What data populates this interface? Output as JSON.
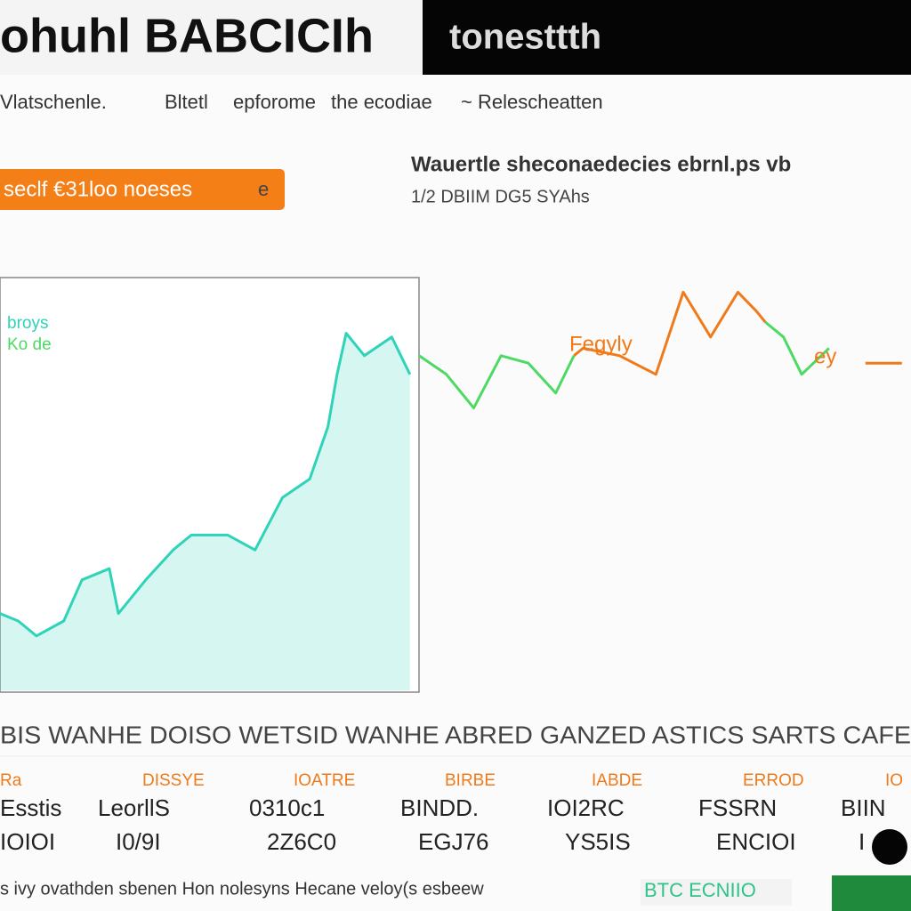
{
  "header": {
    "title": "ohuhl BABCICIh",
    "subtitle": "tonesttth"
  },
  "nav": [
    "Vlatschenle.",
    "Bltetl",
    "epforome",
    "the ecodiae",
    "~ Relescheatten"
  ],
  "button": {
    "label": "seclf €31loo noeses",
    "icon": "e"
  },
  "info": {
    "title": "Wauertle sheconaedecies ebrnl.ps vb",
    "subtitle": "1/2 DBIIM DG5 SYAhs"
  },
  "chart_data": {
    "type": "line",
    "xlim": [
      0,
      100
    ],
    "ylim": [
      0,
      100
    ],
    "series": [
      {
        "name": "broys",
        "color": "#2ed3b8",
        "area": true,
        "x": [
          0,
          2,
          4,
          7,
          9,
          12,
          13,
          16,
          19,
          21,
          25,
          28,
          31,
          34,
          36,
          37,
          38,
          40,
          43,
          45
        ],
        "values": [
          12,
          10,
          6,
          10,
          21,
          24,
          12,
          21,
          29,
          33,
          33,
          29,
          43,
          48,
          62,
          76,
          87,
          81,
          86,
          76
        ]
      },
      {
        "name": "Ko de",
        "color": "#4cd964",
        "x": [
          46,
          49,
          52,
          55,
          58,
          61,
          63,
          74,
          84,
          86,
          88,
          91
        ],
        "values": [
          81,
          76,
          67,
          81,
          79,
          71,
          81,
          null,
          90,
          86,
          76,
          83
        ]
      },
      {
        "color": "#f07a1a",
        "x": [
          63,
          64,
          68,
          72,
          75,
          78,
          81,
          83,
          84,
          90,
          95,
          99
        ],
        "values": [
          81,
          83,
          81,
          76,
          98,
          86,
          98,
          93,
          90,
          null,
          79,
          79
        ]
      }
    ],
    "annotations": [
      "Fegyly",
      "ey"
    ]
  },
  "table": {
    "header": "BIS WANHE DOISO WETSID WANHE ABRED GANZED ASTICS SARTS CAFE",
    "labels": [
      "Ra",
      "DISSYE",
      "IOATRE",
      "BIRBE",
      "IABDE",
      "ERROD",
      "IO"
    ],
    "rows": [
      [
        "Esstis",
        "LeorllS",
        "0310c1",
        "BINDD.",
        "IOI2RC",
        "FSSRN",
        "BIIN"
      ],
      [
        "IOIOI",
        "I0/9I",
        "2Z6C0",
        "EGJ76",
        "YS5IS",
        "ENCIOI",
        "I"
      ]
    ]
  },
  "footer": {
    "text": "s ivy ovathden sbenen Hon nolesyns Hecane veloy(s esbeew",
    "badge": "BTC ECNIIO"
  }
}
